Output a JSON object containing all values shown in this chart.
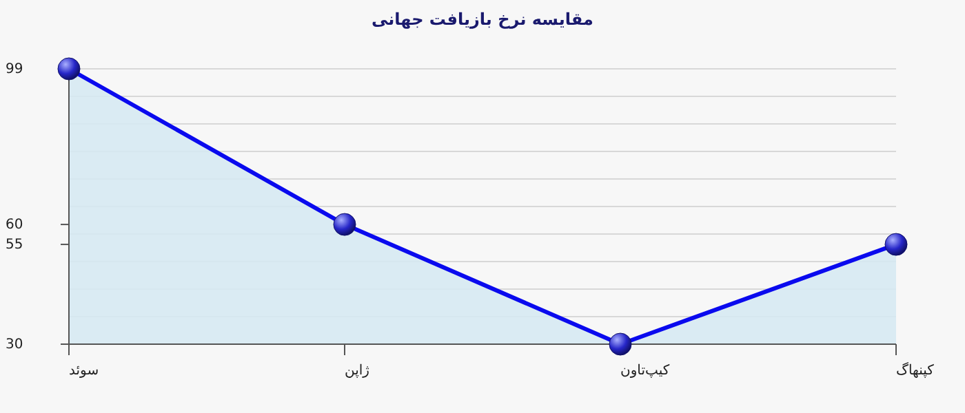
{
  "chart_data": {
    "type": "area",
    "title": "مقایسه نرخ بازیافت جهانی",
    "categories": [
      "سوئد",
      "ژاپن",
      "کیپ‌تاون",
      "کپنهاگ"
    ],
    "series": [
      {
        "color": "#0a0aee",
        "values": [
          99,
          60,
          30,
          55
        ]
      }
    ],
    "ylim": [
      30,
      99
    ],
    "yticks": [
      30,
      55,
      60,
      99
    ],
    "grid": "y",
    "marker": "circle",
    "line_style": "solid"
  }
}
